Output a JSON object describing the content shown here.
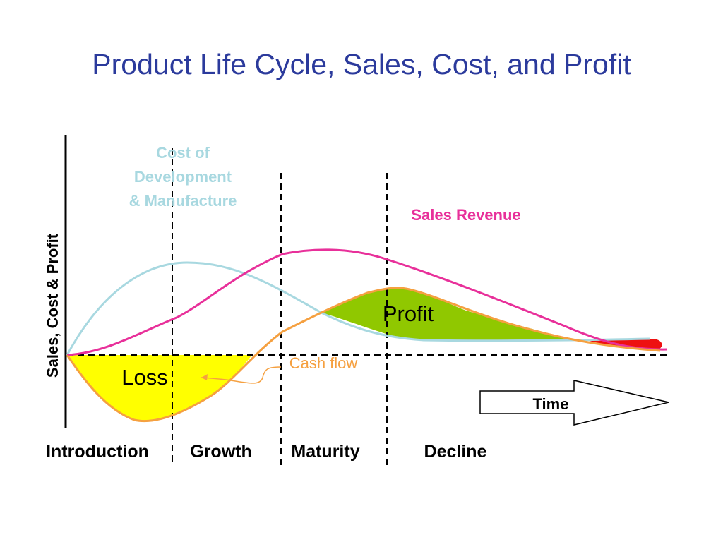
{
  "title": "Product Life Cycle, Sales, Cost, and Profit",
  "y_axis_label": "Sales, Cost & Profit",
  "stages": [
    "Introduction",
    "Growth",
    "Maturity",
    "Decline"
  ],
  "labels": {
    "cost_line1": "Cost of",
    "cost_line2": "Development",
    "cost_line3": "& Manufacture",
    "sales_revenue": "Sales Revenue",
    "profit": "Profit",
    "loss": "Loss",
    "cash_flow": "Cash flow",
    "time": "Time"
  },
  "colors": {
    "title": "#2b3a9c",
    "cost_curve": "#a8d8e0",
    "sales_curve": "#e8309a",
    "cash_flow_curve": "#f5a040",
    "profit_fill": "#90c800",
    "loss_fill": "#ffff00",
    "decline_loss_fill": "#ee1111"
  }
}
